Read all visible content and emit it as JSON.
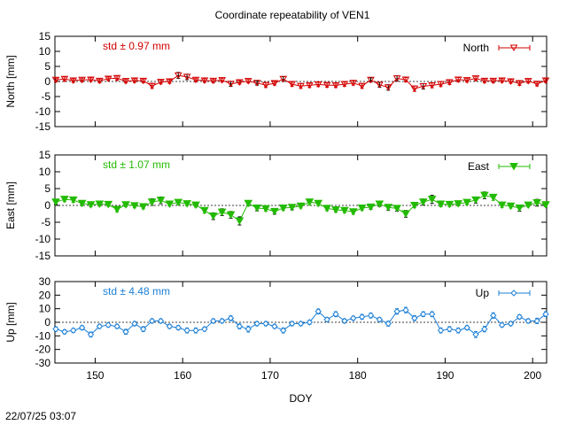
{
  "title": "Coordinate repeatability of VEN1",
  "footer_timestamp": "22/07/25 03:07",
  "colors": {
    "north": "#d40000",
    "east": "#22bb00",
    "up": "#1c7fd6",
    "outlier": "#000000"
  },
  "chart_data": [
    {
      "type": "scatter",
      "name": "north",
      "legend": "North",
      "ylabel": "North [mm]",
      "stat_text": "std ± 0.97 mm",
      "ylim": [
        -15,
        15
      ],
      "yticks": [
        15,
        10,
        5,
        0,
        -5,
        -10,
        -15
      ],
      "xlim": [
        145.4,
        201.6
      ],
      "x": [
        145.5,
        146.5,
        147.5,
        148.5,
        149.5,
        150.5,
        151.5,
        152.5,
        153.5,
        154.5,
        155.5,
        156.5,
        157.5,
        158.5,
        159.5,
        160.5,
        161.5,
        162.5,
        163.5,
        164.5,
        165.5,
        166.5,
        167.5,
        168.5,
        169.5,
        170.5,
        171.5,
        172.5,
        173.5,
        174.5,
        175.5,
        176.5,
        177.5,
        178.5,
        179.5,
        180.5,
        181.5,
        182.5,
        183.5,
        184.5,
        185.5,
        186.5,
        187.5,
        188.5,
        189.5,
        190.5,
        191.5,
        192.5,
        193.5,
        194.5,
        195.5,
        196.5,
        197.5,
        198.5,
        199.5,
        200.5,
        201.5
      ],
      "y": [
        0.5,
        0.8,
        0.3,
        0.5,
        0.6,
        0.2,
        0.9,
        1.1,
        0.1,
        0.3,
        0.2,
        -1.5,
        -0.2,
        0.0,
        2.0,
        1.5,
        0.5,
        0.3,
        0.2,
        0.4,
        -0.8,
        -0.3,
        0.1,
        -0.5,
        -1.2,
        -0.6,
        0.8,
        -0.9,
        -1.5,
        -1.3,
        -1.0,
        -1.2,
        -1.3,
        -0.9,
        -0.5,
        -1.5,
        0.5,
        -1.1,
        -2.0,
        1.0,
        0.6,
        -2.4,
        -1.6,
        -1.3,
        -0.9,
        -0.3,
        0.6,
        0.4,
        1.0,
        0.2,
        0.2,
        0.3,
        0.0,
        -0.6,
        0.1,
        -0.8,
        0.3
      ],
      "err": [
        0.6,
        0.7,
        0.6,
        0.6,
        0.6,
        0.6,
        0.6,
        0.7,
        0.6,
        0.6,
        0.6,
        0.8,
        0.6,
        0.6,
        1.0,
        0.9,
        0.6,
        0.6,
        0.6,
        0.6,
        0.8,
        0.6,
        0.6,
        0.7,
        0.8,
        0.6,
        0.8,
        0.7,
        0.8,
        0.7,
        0.7,
        0.7,
        0.7,
        0.7,
        0.7,
        0.8,
        0.7,
        0.8,
        0.9,
        0.9,
        0.7,
        0.9,
        0.9,
        0.8,
        0.8,
        0.7,
        0.7,
        0.6,
        0.7,
        0.6,
        0.6,
        0.6,
        0.6,
        0.7,
        0.6,
        0.7,
        0.6
      ],
      "outlier_flags": [
        0,
        0,
        0,
        0,
        0,
        0,
        0,
        0,
        0,
        0,
        0,
        0,
        0,
        0,
        1,
        1,
        0,
        0,
        0,
        0,
        1,
        0,
        0,
        1,
        0,
        0,
        1,
        0,
        0,
        0,
        0,
        0,
        0,
        0,
        0,
        0,
        1,
        1,
        1,
        1,
        0,
        0,
        1,
        0,
        0,
        0,
        0,
        0,
        0,
        0,
        0,
        0,
        0,
        0,
        0,
        0,
        0
      ]
    },
    {
      "type": "scatter",
      "name": "east",
      "legend": "East",
      "ylabel": "East [mm]",
      "stat_text": "std ± 1.07 mm",
      "ylim": [
        -15,
        15
      ],
      "yticks": [
        15,
        10,
        5,
        0,
        -5,
        -10,
        -15
      ],
      "xlim": [
        145.4,
        201.6
      ],
      "x": [
        145.5,
        146.5,
        147.5,
        148.5,
        149.5,
        150.5,
        151.5,
        152.5,
        153.5,
        154.5,
        155.5,
        156.5,
        157.5,
        158.5,
        159.5,
        160.5,
        161.5,
        162.5,
        163.5,
        164.5,
        165.5,
        166.5,
        167.5,
        168.5,
        169.5,
        170.5,
        171.5,
        172.5,
        173.5,
        174.5,
        175.5,
        176.5,
        177.5,
        178.5,
        179.5,
        180.5,
        181.5,
        182.5,
        183.5,
        184.5,
        185.5,
        186.5,
        187.5,
        188.5,
        189.5,
        190.5,
        191.5,
        192.5,
        193.5,
        194.5,
        195.5,
        196.5,
        197.5,
        198.5,
        199.5,
        200.5,
        201.5
      ],
      "y": [
        1.0,
        1.8,
        1.6,
        0.6,
        0.2,
        0.4,
        0.3,
        -1.2,
        0.2,
        -0.1,
        -0.4,
        1.0,
        1.5,
        0.4,
        0.9,
        0.5,
        0.1,
        -1.5,
        -3.2,
        -2.0,
        -2.8,
        -4.6,
        0.6,
        -0.8,
        -1.0,
        -1.8,
        -0.8,
        -0.6,
        -0.2,
        1.0,
        0.6,
        -0.9,
        -1.3,
        -1.5,
        -1.9,
        -0.8,
        -0.5,
        0.4,
        -0.6,
        -0.9,
        -2.5,
        0.0,
        1.0,
        1.8,
        0.4,
        0.3,
        0.5,
        0.9,
        1.6,
        3.0,
        2.4,
        0.1,
        -0.2,
        -0.8,
        0.1,
        0.8,
        0.2
      ],
      "err": [
        0.7,
        0.7,
        0.7,
        0.7,
        0.6,
        0.6,
        0.6,
        0.7,
        0.6,
        0.6,
        0.6,
        1.0,
        1.0,
        0.6,
        0.6,
        0.6,
        0.6,
        0.8,
        1.0,
        1.0,
        1.0,
        1.2,
        0.8,
        0.8,
        0.7,
        0.8,
        0.7,
        0.7,
        0.6,
        0.9,
        0.7,
        0.7,
        0.7,
        0.7,
        0.7,
        0.7,
        0.6,
        0.7,
        0.8,
        0.8,
        1.0,
        0.7,
        0.9,
        1.2,
        0.8,
        0.6,
        0.6,
        0.7,
        0.9,
        1.0,
        0.9,
        0.7,
        0.6,
        0.9,
        0.6,
        1.0,
        0.6
      ],
      "outlier_flags": [
        1,
        0,
        0,
        0,
        0,
        0,
        0,
        0,
        0,
        0,
        0,
        1,
        1,
        0,
        0,
        0,
        0,
        0,
        1,
        1,
        1,
        1,
        0,
        1,
        0,
        1,
        0,
        1,
        0,
        0,
        0,
        0,
        0,
        0,
        0,
        0,
        1,
        1,
        1,
        1,
        1,
        0,
        1,
        1,
        0,
        0,
        0,
        0,
        1,
        1,
        0,
        0,
        0,
        1,
        0,
        1,
        0
      ]
    },
    {
      "type": "scatter",
      "name": "up",
      "legend": "Up",
      "ylabel": "Up [mm]",
      "stat_text": "std ± 4.48 mm",
      "ylim": [
        -30,
        30
      ],
      "yticks": [
        30,
        20,
        10,
        0,
        -10,
        -20,
        -30
      ],
      "xlim": [
        145.4,
        201.6
      ],
      "xticks": [
        150,
        160,
        170,
        180,
        190,
        200
      ],
      "xlabel": "DOY",
      "x": [
        145.5,
        146.5,
        147.5,
        148.5,
        149.5,
        150.5,
        151.5,
        152.5,
        153.5,
        154.5,
        155.5,
        156.5,
        157.5,
        158.5,
        159.5,
        160.5,
        161.5,
        162.5,
        163.5,
        164.5,
        165.5,
        166.5,
        167.5,
        168.5,
        169.5,
        170.5,
        171.5,
        172.5,
        173.5,
        174.5,
        175.5,
        176.5,
        177.5,
        178.5,
        179.5,
        180.5,
        181.5,
        182.5,
        183.5,
        184.5,
        185.5,
        186.5,
        187.5,
        188.5,
        189.5,
        190.5,
        191.5,
        192.5,
        193.5,
        194.5,
        195.5,
        196.5,
        197.5,
        198.5,
        199.5,
        200.5,
        201.5
      ],
      "y": [
        -5,
        -7,
        -6,
        -4,
        -9,
        -3,
        -2,
        -3,
        -7,
        -1,
        -5,
        1,
        1,
        -3,
        -4,
        -6,
        -6,
        -5,
        1,
        1,
        3,
        -3,
        -5,
        -1,
        -1,
        -3,
        -6,
        -1,
        -1,
        0,
        8,
        2,
        6,
        1,
        3,
        4,
        5,
        2,
        -1,
        8,
        9,
        3,
        6,
        6,
        -6,
        -5,
        -6,
        -4,
        -9,
        -5,
        5,
        -2,
        -1,
        4,
        1,
        1,
        6
      ],
      "err": [
        1.5,
        1.5,
        1.5,
        1.5,
        1.8,
        1.5,
        1.5,
        1.5,
        1.8,
        1.5,
        1.8,
        1.5,
        1.5,
        1.5,
        1.5,
        1.8,
        1.8,
        1.5,
        1.5,
        1.5,
        1.8,
        1.8,
        2.2,
        1.5,
        1.5,
        1.5,
        1.8,
        1.5,
        1.5,
        1.5,
        1.8,
        1.5,
        1.8,
        1.5,
        1.5,
        1.8,
        1.8,
        1.5,
        1.8,
        2.0,
        2.0,
        1.8,
        1.8,
        1.8,
        1.8,
        1.8,
        1.8,
        1.5,
        2.2,
        2.0,
        2.0,
        1.5,
        1.5,
        1.5,
        1.5,
        2.0,
        1.8
      ],
      "outlier_flags": [
        0,
        0,
        0,
        0,
        0,
        0,
        0,
        0,
        0,
        0,
        0,
        0,
        0,
        0,
        0,
        0,
        0,
        0,
        0,
        0,
        0,
        0,
        0,
        0,
        0,
        0,
        0,
        0,
        0,
        0,
        0,
        0,
        0,
        0,
        0,
        0,
        0,
        0,
        0,
        0,
        0,
        0,
        0,
        0,
        0,
        0,
        0,
        0,
        0,
        0,
        0,
        0,
        0,
        0,
        0,
        0,
        0
      ]
    }
  ]
}
